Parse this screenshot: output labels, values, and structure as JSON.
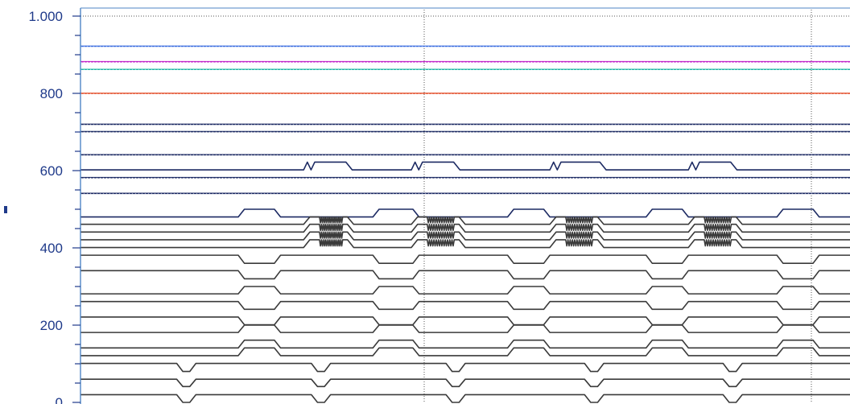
{
  "chart_data": {
    "type": "line",
    "title": "",
    "xlabel": "",
    "ylabel": "",
    "ylim": [
      0,
      1000
    ],
    "yticks": [
      {
        "value": 0,
        "label": "0"
      },
      {
        "value": 200,
        "label": "200"
      },
      {
        "value": 400,
        "label": "400"
      },
      {
        "value": 600,
        "label": "600"
      },
      {
        "value": 800,
        "label": "800"
      },
      {
        "value": 1000,
        "label": "1.000"
      }
    ],
    "minor_tick_step": 50,
    "grid": "dotted vertical lines",
    "legend": "none",
    "colors": {
      "axis": "#4f86c6",
      "tick_label": "#1f3a8a",
      "signal_dark": "#1c2a63",
      "signal_gray": "#3a3a3a",
      "signal_blue": "#3b6de0",
      "signal_magenta": "#c020c8",
      "signal_cyan": "#1fb5a6",
      "signal_red": "#e0401a"
    },
    "series": [
      {
        "color": "signal_blue",
        "kind": "flat",
        "values": [
          922
        ]
      },
      {
        "color": "signal_magenta",
        "kind": "flat",
        "values": [
          882
        ]
      },
      {
        "color": "signal_cyan",
        "kind": "flat",
        "values": [
          862
        ]
      },
      {
        "color": "signal_red",
        "kind": "flat",
        "values": [
          800
        ]
      },
      {
        "color": "signal_dark",
        "kind": "flat",
        "values": [
          720
        ]
      },
      {
        "color": "signal_dark",
        "kind": "flat",
        "values": [
          701
        ]
      },
      {
        "color": "signal_dark",
        "kind": "flat",
        "values": [
          641
        ]
      },
      {
        "color": "signal_dark",
        "kind": "pulse",
        "values": [
          602,
          622
        ],
        "pattern": [
          [
            58,
            62,
            "glitch"
          ],
          [
            86,
            90,
            "glitch"
          ],
          [
            122,
            128,
            "glitch"
          ],
          [
            158,
            162,
            "glitch"
          ]
        ]
      },
      {
        "color": "signal_dark",
        "kind": "flat",
        "values": [
          582
        ]
      },
      {
        "color": "signal_dark",
        "kind": "flat",
        "values": [
          541
        ]
      },
      {
        "color": "signal_dark",
        "kind": "pulse",
        "values": [
          480,
          500
        ],
        "pattern": [
          [
            41,
            52
          ],
          [
            76,
            88
          ],
          [
            111,
            122
          ],
          [
            147,
            158
          ],
          [
            181,
            192
          ]
        ]
      },
      {
        "color": "signal_gray",
        "kind": "pulse",
        "values": [
          461,
          480
        ],
        "pattern": [
          [
            58,
            71,
            "comb"
          ],
          [
            86,
            100,
            "comb"
          ],
          [
            122,
            136,
            "comb"
          ],
          [
            158,
            172,
            "comb"
          ]
        ]
      },
      {
        "color": "signal_gray",
        "kind": "pulse",
        "values": [
          441,
          461
        ],
        "pattern": [
          [
            58,
            71,
            "comb"
          ],
          [
            86,
            100,
            "comb"
          ],
          [
            122,
            136,
            "comb"
          ],
          [
            158,
            172,
            "comb"
          ]
        ]
      },
      {
        "color": "signal_gray",
        "kind": "pulse",
        "values": [
          421,
          441
        ],
        "pattern": [
          [
            58,
            71,
            "comb"
          ],
          [
            86,
            100,
            "comb"
          ],
          [
            122,
            136,
            "comb"
          ],
          [
            158,
            172,
            "comb"
          ]
        ]
      },
      {
        "color": "signal_gray",
        "kind": "pulse",
        "values": [
          401,
          421
        ],
        "pattern": [
          [
            58,
            71,
            "comb"
          ],
          [
            86,
            100,
            "comb"
          ],
          [
            122,
            136,
            "comb"
          ],
          [
            158,
            172,
            "comb"
          ]
        ]
      },
      {
        "color": "signal_gray",
        "kind": "pulse",
        "values": [
          381,
          360
        ],
        "pattern": [
          [
            41,
            52
          ],
          [
            76,
            88
          ],
          [
            111,
            122
          ],
          [
            147,
            158
          ],
          [
            181,
            192
          ]
        ]
      },
      {
        "color": "signal_gray",
        "kind": "pulse",
        "values": [
          341,
          320
        ],
        "pattern": [
          [
            41,
            52
          ],
          [
            76,
            88
          ],
          [
            111,
            122
          ],
          [
            147,
            158
          ],
          [
            181,
            192
          ]
        ]
      },
      {
        "color": "signal_gray",
        "kind": "pulse",
        "values": [
          281,
          300
        ],
        "pattern": [
          [
            41,
            52
          ],
          [
            76,
            88
          ],
          [
            111,
            122
          ],
          [
            147,
            158
          ],
          [
            181,
            192
          ]
        ]
      },
      {
        "color": "signal_gray",
        "kind": "pulse",
        "values": [
          261,
          241
        ],
        "pattern": [
          [
            41,
            52
          ],
          [
            76,
            88
          ],
          [
            111,
            122
          ],
          [
            147,
            158
          ],
          [
            181,
            192
          ]
        ]
      },
      {
        "color": "signal_gray",
        "kind": "pulse",
        "values": [
          221,
          201
        ],
        "pattern": [
          [
            41,
            52
          ],
          [
            76,
            88
          ],
          [
            111,
            122
          ],
          [
            147,
            158
          ],
          [
            181,
            192
          ]
        ]
      },
      {
        "color": "signal_gray",
        "kind": "pulse",
        "values": [
          181,
          200
        ],
        "pattern": [
          [
            41,
            52
          ],
          [
            76,
            88
          ],
          [
            111,
            122
          ],
          [
            147,
            158
          ],
          [
            181,
            192
          ]
        ]
      },
      {
        "color": "signal_gray",
        "kind": "pulse",
        "values": [
          141,
          161
        ],
        "pattern": [
          [
            41,
            52
          ],
          [
            76,
            88
          ],
          [
            111,
            122
          ],
          [
            147,
            158
          ],
          [
            181,
            192
          ]
        ]
      },
      {
        "color": "signal_gray",
        "kind": "pulse",
        "values": [
          121,
          141
        ],
        "pattern": [
          [
            41,
            52
          ],
          [
            76,
            88
          ],
          [
            111,
            122
          ],
          [
            147,
            158
          ],
          [
            181,
            192
          ]
        ]
      },
      {
        "color": "signal_gray",
        "kind": "pulse",
        "values": [
          101,
          80
        ],
        "pattern": [
          [
            25,
            30
          ],
          [
            60,
            65
          ],
          [
            95,
            100
          ],
          [
            131,
            136
          ],
          [
            167,
            172
          ]
        ]
      },
      {
        "color": "signal_gray",
        "kind": "pulse",
        "values": [
          60,
          41
        ],
        "pattern": [
          [
            25,
            30
          ],
          [
            60,
            65
          ],
          [
            95,
            100
          ],
          [
            131,
            136
          ],
          [
            167,
            172
          ]
        ]
      },
      {
        "color": "signal_gray",
        "kind": "pulse",
        "values": [
          20,
          0
        ],
        "pattern": [
          [
            25,
            30
          ],
          [
            60,
            65
          ],
          [
            95,
            100
          ],
          [
            131,
            136
          ],
          [
            167,
            172
          ]
        ]
      }
    ]
  }
}
